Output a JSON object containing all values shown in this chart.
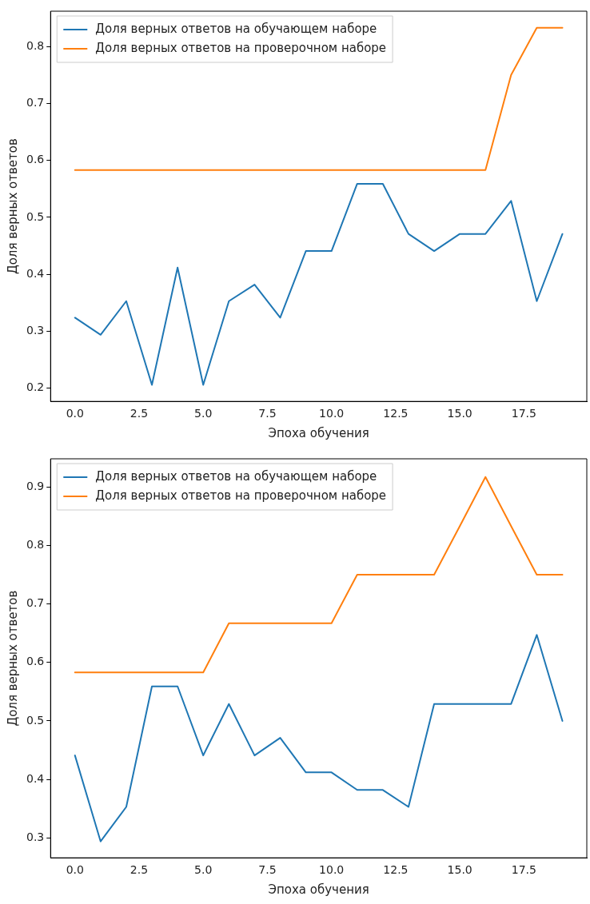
{
  "chart_data": [
    {
      "type": "line",
      "xlabel": "Эпоха обучения",
      "ylabel": "Доля верных ответов",
      "x": [
        0,
        1,
        2,
        3,
        4,
        5,
        6,
        7,
        8,
        9,
        10,
        11,
        12,
        13,
        14,
        15,
        16,
        17,
        18,
        19
      ],
      "series": [
        {
          "name": "Доля верных ответов на обучающем наборе",
          "color": "#1f77b4",
          "values": [
            0.324,
            0.294,
            0.353,
            0.206,
            0.412,
            0.206,
            0.353,
            0.382,
            0.324,
            0.441,
            0.441,
            0.559,
            0.559,
            0.471,
            0.441,
            0.471,
            0.471,
            0.529,
            0.353,
            0.471
          ]
        },
        {
          "name": "Доля верных ответов на проверочном наборе",
          "color": "#ff7f0e",
          "values": [
            0.583,
            0.583,
            0.583,
            0.583,
            0.583,
            0.583,
            0.583,
            0.583,
            0.583,
            0.583,
            0.583,
            0.583,
            0.583,
            0.583,
            0.583,
            0.583,
            0.583,
            0.75,
            0.833,
            0.833
          ]
        }
      ],
      "xlim": [
        -0.95,
        19.95
      ],
      "xticks": [
        {
          "value": 0,
          "label": "0.0"
        },
        {
          "value": 2.5,
          "label": "2.5"
        },
        {
          "value": 5,
          "label": "5.0"
        },
        {
          "value": 7.5,
          "label": "7.5"
        },
        {
          "value": 10,
          "label": "10.0"
        },
        {
          "value": 12.5,
          "label": "12.5"
        },
        {
          "value": 15,
          "label": "15.0"
        },
        {
          "value": 17.5,
          "label": "17.5"
        }
      ],
      "ylim": [
        0.177,
        0.862
      ],
      "yticks": [
        0.2,
        0.3,
        0.4,
        0.5,
        0.6,
        0.7,
        0.8
      ],
      "grid": false,
      "legend": "top left",
      "marker": "none",
      "line_style": "solid"
    },
    {
      "type": "line",
      "xlabel": "Эпоха обучения",
      "ylabel": "Доля верных ответов",
      "x": [
        0,
        1,
        2,
        3,
        4,
        5,
        6,
        7,
        8,
        9,
        10,
        11,
        12,
        13,
        14,
        15,
        16,
        17,
        18,
        19
      ],
      "series": [
        {
          "name": "Доля верных ответов на обучающем наборе",
          "color": "#1f77b4",
          "values": [
            0.441,
            0.294,
            0.353,
            0.559,
            0.559,
            0.441,
            0.529,
            0.441,
            0.471,
            0.412,
            0.412,
            0.382,
            0.382,
            0.353,
            0.529,
            0.529,
            0.529,
            0.529,
            0.647,
            0.5
          ]
        },
        {
          "name": "Доля верных ответов на проверочном наборе",
          "color": "#ff7f0e",
          "values": [
            0.583,
            0.583,
            0.583,
            0.583,
            0.583,
            0.583,
            0.667,
            0.667,
            0.667,
            0.667,
            0.667,
            0.75,
            0.75,
            0.75,
            0.75,
            0.833,
            0.917,
            0.833,
            0.75,
            0.75
          ]
        }
      ],
      "xlim": [
        -0.95,
        19.95
      ],
      "xticks": [
        {
          "value": 0,
          "label": "0.0"
        },
        {
          "value": 2.5,
          "label": "2.5"
        },
        {
          "value": 5,
          "label": "5.0"
        },
        {
          "value": 7.5,
          "label": "7.5"
        },
        {
          "value": 10,
          "label": "10.0"
        },
        {
          "value": 12.5,
          "label": "12.5"
        },
        {
          "value": 15,
          "label": "15.0"
        },
        {
          "value": 17.5,
          "label": "17.5"
        }
      ],
      "ylim": [
        0.266,
        0.948
      ],
      "yticks": [
        0.3,
        0.4,
        0.5,
        0.6,
        0.7,
        0.8,
        0.9
      ],
      "grid": false,
      "legend": "top left",
      "marker": "none",
      "line_style": "solid"
    }
  ]
}
